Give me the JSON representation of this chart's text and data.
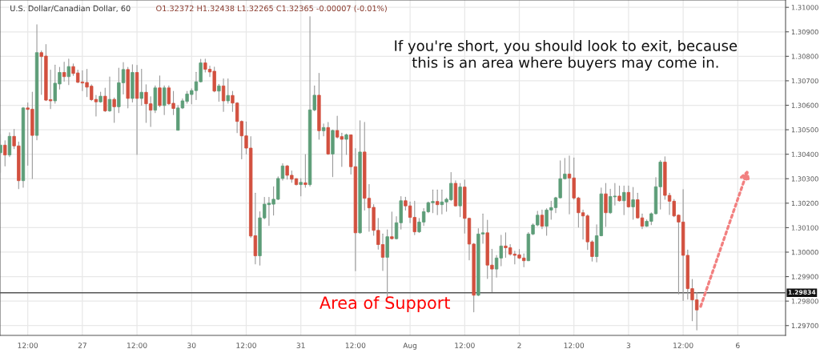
{
  "chart_data": {
    "type": "candlestick",
    "title": "U.S. Dollar/Canadian Dollar, 60",
    "subtitle": "O1.32372 H1.32438 L1.32265 C1.32365 -0.00007 (-0.01%)",
    "annotations": [
      "If you're short, you should look to exit, because\nthis is an area where buyers may come in.",
      "Area of Support"
    ],
    "categories": [
      null,
      null,
      null,
      null,
      null,
      null,
      "12:00",
      null,
      null,
      null,
      null,
      null,
      null,
      null,
      null,
      null,
      null,
      null,
      "27",
      null,
      null,
      null,
      null,
      null,
      null,
      null,
      null,
      null,
      null,
      null,
      "12:00",
      null,
      null,
      null,
      null,
      null,
      null,
      null,
      null,
      null,
      null,
      null,
      "30",
      null,
      null,
      null,
      null,
      null,
      null,
      null,
      null,
      null,
      null,
      null,
      "12:00",
      null,
      null,
      null,
      null,
      null,
      null,
      null,
      null,
      null,
      null,
      null,
      "31",
      null,
      null,
      null,
      null,
      null,
      null,
      null,
      null,
      null,
      null,
      null,
      "12:00",
      null,
      null,
      null,
      null,
      null,
      null,
      null,
      null,
      null,
      null,
      null,
      "Aug",
      null,
      null,
      null,
      null,
      null,
      null,
      null,
      null,
      null,
      null,
      null,
      "12:00",
      null,
      null,
      null,
      null,
      null,
      null,
      null,
      null,
      null,
      null,
      null,
      "2",
      null,
      null,
      null,
      null,
      null,
      null,
      null,
      null,
      null,
      null,
      null,
      "12:00",
      null,
      null,
      null,
      null,
      null,
      null,
      null,
      null,
      null,
      null,
      null,
      "3",
      null,
      null,
      null,
      null,
      null,
      null,
      null,
      null,
      null,
      null,
      null,
      "12:00",
      null,
      null,
      null,
      null,
      null,
      null,
      null,
      null,
      null,
      null,
      null,
      "6",
      null,
      null,
      null,
      null,
      null,
      null,
      null,
      null,
      null,
      null
    ],
    "ohlc": [
      [
        1.30406,
        1.30481,
        1.30325,
        1.30437
      ],
      [
        1.30437,
        1.30455,
        1.30352,
        1.30397
      ],
      [
        1.30397,
        1.30488,
        1.3039,
        1.30473
      ],
      [
        1.30473,
        1.30502,
        1.30423,
        1.30434
      ],
      [
        1.30434,
        1.3045,
        1.30259,
        1.30292
      ],
      [
        1.30292,
        1.30592,
        1.30265,
        1.30589
      ],
      [
        1.30589,
        1.3061,
        1.30355,
        1.30583
      ],
      [
        1.30584,
        1.30654,
        1.30301,
        1.30477
      ],
      [
        1.30477,
        1.30929,
        1.30459,
        1.30815
      ],
      [
        1.30815,
        1.30822,
        1.30644,
        1.30799
      ],
      [
        1.30801,
        1.30848,
        1.30619,
        1.30621
      ],
      [
        1.30623,
        1.30744,
        1.30586,
        1.30618
      ],
      [
        1.30618,
        1.30764,
        1.30608,
        1.3069
      ],
      [
        1.30687,
        1.30755,
        1.30666,
        1.30734
      ],
      [
        1.30734,
        1.30776,
        1.30698,
        1.30717
      ],
      [
        1.30717,
        1.30789,
        1.30684,
        1.30758
      ],
      [
        1.30758,
        1.30769,
        1.30722,
        1.3073
      ],
      [
        1.30732,
        1.30744,
        1.30692,
        1.30694
      ],
      [
        1.30695,
        1.30741,
        1.3066,
        1.30691
      ],
      [
        1.30693,
        1.30747,
        1.30635,
        1.30674
      ],
      [
        1.30678,
        1.30684,
        1.30619,
        1.30623
      ],
      [
        1.30624,
        1.30641,
        1.30556,
        1.30614
      ],
      [
        1.30614,
        1.30654,
        1.30612,
        1.30637
      ],
      [
        1.30637,
        1.3067,
        1.30574,
        1.30577
      ],
      [
        1.30577,
        1.30716,
        1.30575,
        1.30624
      ],
      [
        1.30624,
        1.3063,
        1.3053,
        1.30594
      ],
      [
        1.30594,
        1.30752,
        1.3057,
        1.30692
      ],
      [
        1.30692,
        1.30775,
        1.30646,
        1.30746
      ],
      [
        1.30746,
        1.30755,
        1.30589,
        1.30628
      ],
      [
        1.30628,
        1.30766,
        1.30613,
        1.30734
      ],
      [
        1.30734,
        1.30763,
        1.30399,
        1.30628
      ],
      [
        1.30628,
        1.30747,
        1.306,
        1.30653
      ],
      [
        1.30653,
        1.30684,
        1.3053,
        1.30606
      ],
      [
        1.30606,
        1.30635,
        1.30513,
        1.3058
      ],
      [
        1.3058,
        1.30679,
        1.3057,
        1.30671
      ],
      [
        1.30671,
        1.3072,
        1.30594,
        1.30599
      ],
      [
        1.30599,
        1.30679,
        1.30562,
        1.30671
      ],
      [
        1.30671,
        1.30679,
        1.30603,
        1.30606
      ],
      [
        1.30608,
        1.30657,
        1.30562,
        1.30587
      ],
      [
        1.30498,
        1.30599,
        1.30498,
        1.30589
      ],
      [
        1.30589,
        1.30626,
        1.30586,
        1.30618
      ],
      [
        1.30616,
        1.30657,
        1.30608,
        1.30646
      ],
      [
        1.30644,
        1.30668,
        1.30606,
        1.3066
      ],
      [
        1.3066,
        1.30735,
        1.30623,
        1.30696
      ],
      [
        1.30696,
        1.30788,
        1.30695,
        1.30773
      ],
      [
        1.30773,
        1.30789,
        1.30736,
        1.30747
      ],
      [
        1.30747,
        1.3076,
        1.30717,
        1.30736
      ],
      [
        1.30739,
        1.30756,
        1.30655,
        1.30658
      ],
      [
        1.30658,
        1.30686,
        1.30616,
        1.30679
      ],
      [
        1.30679,
        1.30708,
        1.30575,
        1.30618
      ],
      [
        1.30618,
        1.30708,
        1.30608,
        1.3064
      ],
      [
        1.3064,
        1.30657,
        1.30575,
        1.30609
      ],
      [
        1.30609,
        1.30611,
        1.30488,
        1.30534
      ],
      [
        1.30534,
        1.30537,
        1.30381,
        1.30475
      ],
      [
        1.30475,
        1.30532,
        1.30401,
        1.30425
      ],
      [
        1.30425,
        1.30472,
        1.3006,
        1.30066
      ],
      [
        1.30067,
        1.30241,
        1.29952,
        1.29985
      ],
      [
        1.29985,
        1.30165,
        1.29947,
        1.3014
      ],
      [
        1.3014,
        1.30224,
        1.30136,
        1.30196
      ],
      [
        1.30194,
        1.30224,
        1.30109,
        1.302
      ],
      [
        1.30196,
        1.30267,
        1.30151,
        1.30216
      ],
      [
        1.30216,
        1.30308,
        1.30214,
        1.30301
      ],
      [
        1.30301,
        1.30361,
        1.30294,
        1.30352
      ],
      [
        1.30352,
        1.30355,
        1.30298,
        1.30314
      ],
      [
        1.30314,
        1.30332,
        1.30285,
        1.30298
      ],
      [
        1.303,
        1.30301,
        1.30274,
        1.30276
      ],
      [
        1.30276,
        1.30301,
        1.3023,
        1.30285
      ],
      [
        1.30283,
        1.30399,
        1.30265,
        1.30276
      ],
      [
        1.30276,
        1.30962,
        1.3027,
        1.30581
      ],
      [
        1.30581,
        1.30679,
        1.30577,
        1.30641
      ],
      [
        1.30641,
        1.30731,
        1.30461,
        1.30496
      ],
      [
        1.30496,
        1.30524,
        1.30475,
        1.30509
      ],
      [
        1.30509,
        1.3053,
        1.30399,
        1.30401
      ],
      [
        1.30401,
        1.30499,
        1.30308,
        1.30497
      ],
      [
        1.30497,
        1.30556,
        1.30466,
        1.3047
      ],
      [
        1.30472,
        1.30486,
        1.3035,
        1.30461
      ],
      [
        1.30461,
        1.30483,
        1.30399,
        1.30479
      ],
      [
        1.30479,
        1.30479,
        1.30319,
        1.30349
      ],
      [
        1.30349,
        1.30423,
        1.29924,
        1.30079
      ],
      [
        1.30079,
        1.30537,
        1.30077,
        1.30409
      ],
      [
        1.30409,
        1.3053,
        1.30172,
        1.3022
      ],
      [
        1.3022,
        1.30276,
        1.30085,
        1.30181
      ],
      [
        1.30183,
        1.30194,
        1.30069,
        1.30089
      ],
      [
        1.30089,
        1.30138,
        1.30012,
        1.30031
      ],
      [
        1.30031,
        1.30074,
        1.29925,
        1.29979
      ],
      [
        1.29979,
        1.30091,
        1.29818,
        1.30063
      ],
      [
        1.30063,
        1.30164,
        1.30053,
        1.30055
      ],
      [
        1.30055,
        1.30145,
        1.30053,
        1.3012
      ],
      [
        1.3012,
        1.30227,
        1.30094,
        1.3021
      ],
      [
        1.3021,
        1.30225,
        1.30172,
        1.30189
      ],
      [
        1.30189,
        1.30205,
        1.3012,
        1.30142
      ],
      [
        1.30142,
        1.30208,
        1.30071,
        1.30083
      ],
      [
        1.30083,
        1.30138,
        1.3008,
        1.30123
      ],
      [
        1.30123,
        1.30178,
        1.30109,
        1.30165
      ],
      [
        1.30165,
        1.30205,
        1.30161,
        1.30202
      ],
      [
        1.30202,
        1.30254,
        1.30161,
        1.30207
      ],
      [
        1.30207,
        1.30254,
        1.30153,
        1.30194
      ],
      [
        1.30194,
        1.30254,
        1.30156,
        1.30205
      ],
      [
        1.30205,
        1.30221,
        1.30167,
        1.30216
      ],
      [
        1.30214,
        1.30325,
        1.3021,
        1.30281
      ],
      [
        1.30281,
        1.30292,
        1.30187,
        1.30189
      ],
      [
        1.30189,
        1.30281,
        1.30145,
        1.30266
      ],
      [
        1.30266,
        1.30295,
        1.30078,
        1.30138
      ],
      [
        1.30138,
        1.3014,
        1.29968,
        1.30033
      ],
      [
        1.30033,
        1.30036,
        1.29756,
        1.29824
      ],
      [
        1.29824,
        1.30096,
        1.29822,
        1.30074
      ],
      [
        1.30074,
        1.30156,
        1.30036,
        1.30079
      ],
      [
        1.30079,
        1.30131,
        1.29892,
        1.29947
      ],
      [
        1.29947,
        1.30012,
        1.29838,
        1.29931
      ],
      [
        1.29931,
        1.29987,
        1.29898,
        1.29976
      ],
      [
        1.29976,
        1.30069,
        1.29944,
        1.30025
      ],
      [
        1.30025,
        1.30079,
        1.29979,
        1.30018
      ],
      [
        1.30018,
        1.30031,
        1.29987,
        1.29992
      ],
      [
        1.29992,
        1.30004,
        1.29952,
        1.29987
      ],
      [
        1.29989,
        1.30011,
        1.29973,
        1.29976
      ],
      [
        1.29976,
        1.29993,
        1.2994,
        1.29965
      ],
      [
        1.29965,
        1.3008,
        1.29965,
        1.30074
      ],
      [
        1.30074,
        1.30116,
        1.30071,
        1.30111
      ],
      [
        1.30111,
        1.30167,
        1.30107,
        1.30151
      ],
      [
        1.30151,
        1.30172,
        1.30096,
        1.30106
      ],
      [
        1.30106,
        1.30178,
        1.30069,
        1.30172
      ],
      [
        1.30172,
        1.30208,
        1.30134,
        1.30182
      ],
      [
        1.30182,
        1.30225,
        1.30161,
        1.30222
      ],
      [
        1.30222,
        1.30373,
        1.30221,
        1.303
      ],
      [
        1.303,
        1.30383,
        1.30298,
        1.30319
      ],
      [
        1.30319,
        1.30393,
        1.30156,
        1.30303
      ],
      [
        1.30303,
        1.30385,
        1.30216,
        1.30221
      ],
      [
        1.30221,
        1.30225,
        1.30102,
        1.30161
      ],
      [
        1.30161,
        1.30172,
        1.30053,
        1.30148
      ],
      [
        1.30148,
        1.30153,
        1.30011,
        1.30042
      ],
      [
        1.30042,
        1.30047,
        1.29963,
        1.29982
      ],
      [
        1.29982,
        1.30112,
        1.2996,
        1.30067
      ],
      [
        1.30067,
        1.30262,
        1.30066,
        1.30238
      ],
      [
        1.30238,
        1.30281,
        1.30105,
        1.30161
      ],
      [
        1.30161,
        1.30257,
        1.30158,
        1.30227
      ],
      [
        1.30226,
        1.30281,
        1.30192,
        1.30229
      ],
      [
        1.30229,
        1.3027,
        1.30208,
        1.3021
      ],
      [
        1.3021,
        1.3027,
        1.30153,
        1.30244
      ],
      [
        1.30244,
        1.3027,
        1.30183,
        1.30185
      ],
      [
        1.30185,
        1.30265,
        1.30134,
        1.30214
      ],
      [
        1.30214,
        1.30241,
        1.30138,
        1.3014
      ],
      [
        1.3014,
        1.30156,
        1.30096,
        1.30106
      ],
      [
        1.30106,
        1.30132,
        1.30105,
        1.30126
      ],
      [
        1.30126,
        1.30161,
        1.30112,
        1.30157
      ],
      [
        1.30157,
        1.30305,
        1.30155,
        1.30267
      ],
      [
        1.30267,
        1.30374,
        1.30176,
        1.30368
      ],
      [
        1.30368,
        1.3039,
        1.30216,
        1.30232
      ],
      [
        1.30232,
        1.30241,
        1.30154,
        1.30208
      ],
      [
        1.30208,
        1.30216,
        1.30145,
        1.30148
      ],
      [
        1.30151,
        1.30153,
        1.29829,
        1.30123
      ],
      [
        1.30123,
        1.30256,
        1.29802,
        1.29987
      ],
      [
        1.29987,
        1.30009,
        1.29808,
        1.29851
      ],
      [
        1.29851,
        1.29889,
        1.2972,
        1.29805
      ],
      [
        1.29805,
        1.29835,
        1.29682,
        1.29764
      ],
      null,
      null,
      null,
      null,
      null,
      null,
      null,
      null,
      null,
      null,
      null,
      null,
      null,
      null,
      null,
      null,
      null,
      null,
      null
    ],
    "ylim": [
      1.2966,
      1.3103
    ],
    "yticks": [
      {
        "value": 1.297,
        "label": "1.29700"
      },
      {
        "value": 1.298,
        "label": "1.29800"
      },
      {
        "value": 1.299,
        "label": "1.29900"
      },
      {
        "value": 1.3,
        "label": "1.30000"
      },
      {
        "value": 1.301,
        "label": "1.30100"
      },
      {
        "value": 1.302,
        "label": "1.30200"
      },
      {
        "value": 1.303,
        "label": "1.30300"
      },
      {
        "value": 1.304,
        "label": "1.30400"
      },
      {
        "value": 1.305,
        "label": "1.30500"
      },
      {
        "value": 1.306,
        "label": "1.30600"
      },
      {
        "value": 1.307,
        "label": "1.30700"
      },
      {
        "value": 1.308,
        "label": "1.30800"
      },
      {
        "value": 1.309,
        "label": "1.30900"
      },
      {
        "value": 1.31,
        "label": "1.31000"
      }
    ],
    "ref_lines": [
      {
        "axis": "y",
        "value": 1.29834,
        "label": "1.29834",
        "color": "#555555"
      }
    ],
    "grid": true
  }
}
